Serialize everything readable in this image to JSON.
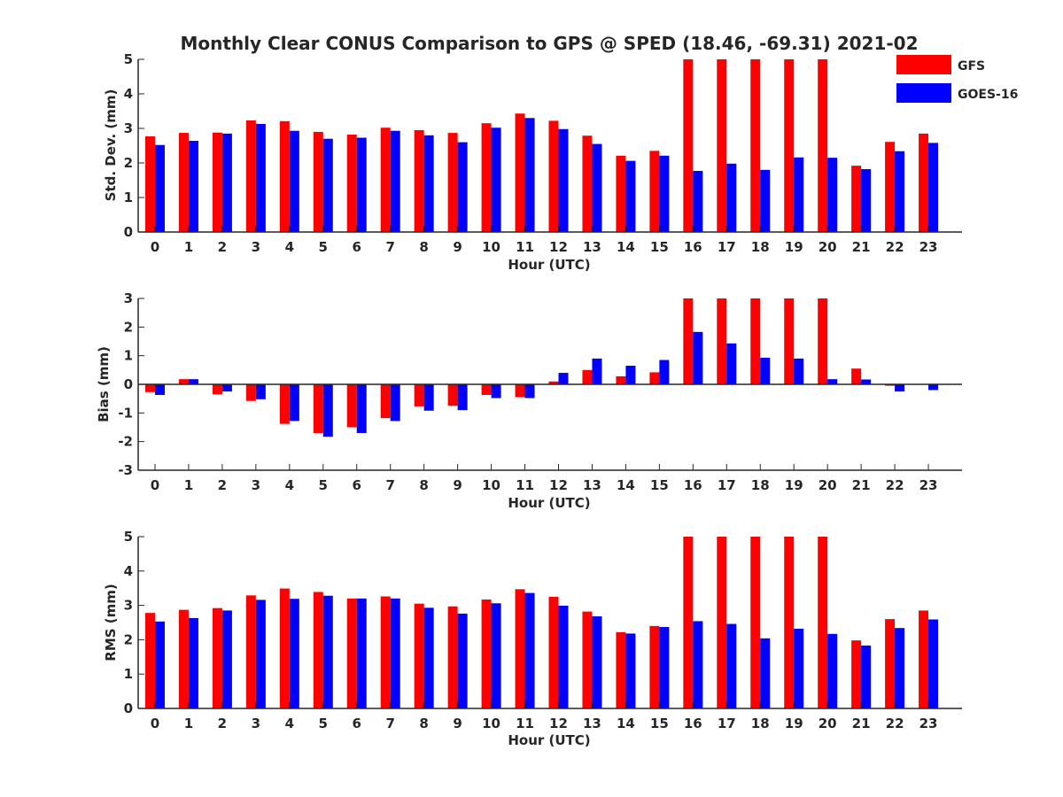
{
  "chart_data": {
    "title": "Monthly Clear CONUS Comparison to GPS @ SPED (18.46, -69.31) 2021-02",
    "legend": {
      "placement": "top-right",
      "entries": [
        {
          "label": "GFS",
          "color": "#ff0000"
        },
        {
          "label": "GOES-16",
          "color": "#0000ff"
        }
      ]
    },
    "panels": [
      {
        "type": "bar",
        "ylabel": "Std. Dev. (mm)",
        "xlabel": "Hour (UTC)",
        "ylim": [
          0,
          5
        ],
        "yticks": [
          "0",
          "1",
          "2",
          "3",
          "4",
          "5"
        ],
        "categories": [
          "0",
          "1",
          "2",
          "3",
          "4",
          "5",
          "6",
          "7",
          "8",
          "9",
          "10",
          "11",
          "12",
          "13",
          "14",
          "15",
          "16",
          "17",
          "18",
          "19",
          "20",
          "21",
          "22",
          "23"
        ],
        "series": [
          {
            "name": "GFS",
            "color": "#ff0000",
            "values": [
              2.77,
              2.87,
              2.88,
              3.23,
              3.21,
              2.9,
              2.82,
              3.02,
              2.95,
              2.87,
              3.15,
              3.43,
              3.22,
              2.79,
              2.21,
              2.35,
              5.0,
              5.0,
              5.0,
              5.0,
              5.0,
              1.92,
              2.61,
              2.85
            ]
          },
          {
            "name": "GOES-16",
            "color": "#0000ff",
            "values": [
              2.52,
              2.64,
              2.85,
              3.13,
              2.93,
              2.7,
              2.73,
              2.93,
              2.8,
              2.6,
              3.02,
              3.3,
              2.98,
              2.55,
              2.06,
              2.21,
              1.77,
              1.98,
              1.8,
              2.16,
              2.15,
              1.82,
              2.34,
              2.58
            ]
          }
        ]
      },
      {
        "type": "bar",
        "ylabel": "Bias (mm)",
        "xlabel": "Hour (UTC)",
        "ylim": [
          -3,
          3
        ],
        "yticks": [
          "-3",
          "-2",
          "-1",
          "0",
          "1",
          "2",
          "3"
        ],
        "categories": [
          "0",
          "1",
          "2",
          "3",
          "4",
          "5",
          "6",
          "7",
          "8",
          "9",
          "10",
          "11",
          "12",
          "13",
          "14",
          "15",
          "16",
          "17",
          "18",
          "19",
          "20",
          "21",
          "22",
          "23"
        ],
        "series": [
          {
            "name": "GFS",
            "color": "#ff0000",
            "values": [
              -0.27,
              0.18,
              -0.35,
              -0.58,
              -1.38,
              -1.7,
              -1.5,
              -1.18,
              -0.77,
              -0.75,
              -0.37,
              -0.45,
              0.1,
              0.5,
              0.28,
              0.42,
              3.0,
              3.0,
              3.0,
              3.0,
              3.0,
              0.55,
              -0.05,
              0.0
            ]
          },
          {
            "name": "GOES-16",
            "color": "#0000ff",
            "values": [
              -0.37,
              0.18,
              -0.25,
              -0.52,
              -1.28,
              -1.83,
              -1.7,
              -1.28,
              -0.92,
              -0.9,
              -0.48,
              -0.48,
              0.4,
              0.9,
              0.65,
              0.85,
              1.83,
              1.43,
              0.93,
              0.9,
              0.18,
              0.17,
              -0.25,
              -0.2
            ]
          }
        ]
      },
      {
        "type": "bar",
        "ylabel": "RMS (mm)",
        "xlabel": "Hour (UTC)",
        "ylim": [
          0,
          5
        ],
        "yticks": [
          "0",
          "1",
          "2",
          "3",
          "4",
          "5"
        ],
        "categories": [
          "0",
          "1",
          "2",
          "3",
          "4",
          "5",
          "6",
          "7",
          "8",
          "9",
          "10",
          "11",
          "12",
          "13",
          "14",
          "15",
          "16",
          "17",
          "18",
          "19",
          "20",
          "21",
          "22",
          "23"
        ],
        "series": [
          {
            "name": "GFS",
            "color": "#ff0000",
            "values": [
              2.78,
              2.87,
              2.92,
              3.29,
              3.49,
              3.39,
              3.2,
              3.26,
              3.05,
              2.97,
              3.17,
              3.47,
              3.25,
              2.82,
              2.22,
              2.4,
              5.0,
              5.0,
              5.0,
              5.0,
              5.0,
              1.98,
              2.6,
              2.85
            ]
          },
          {
            "name": "GOES-16",
            "color": "#0000ff",
            "values": [
              2.53,
              2.63,
              2.85,
              3.16,
              3.19,
              3.28,
              3.2,
              3.2,
              2.93,
              2.76,
              3.06,
              3.36,
              2.99,
              2.68,
              2.18,
              2.37,
              2.54,
              2.46,
              2.04,
              2.32,
              2.17,
              1.83,
              2.34,
              2.59
            ]
          }
        ]
      }
    ]
  }
}
